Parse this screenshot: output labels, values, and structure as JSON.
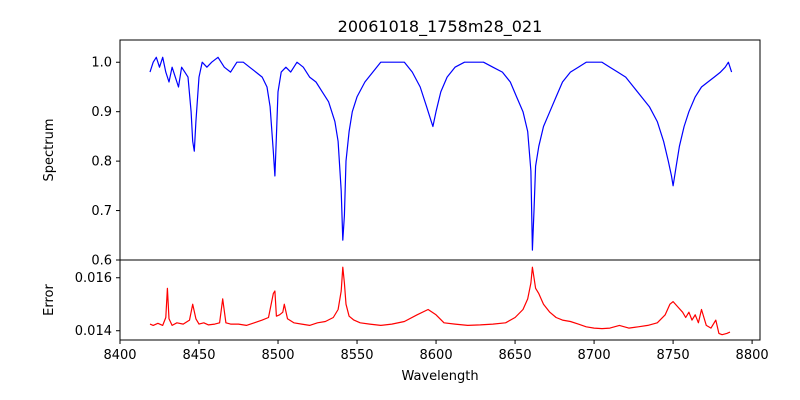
{
  "chart_data": [
    {
      "type": "line",
      "title": "20061018_1758m28_021",
      "xlabel": "",
      "ylabel": "Spectrum",
      "xlim": [
        8400,
        8805
      ],
      "ylim": [
        0.6,
        1.045
      ],
      "xticks": [
        8400,
        8450,
        8500,
        8550,
        8600,
        8650,
        8700,
        8750,
        8800
      ],
      "yticks": [
        0.6,
        0.7,
        0.8,
        0.9,
        1.0
      ],
      "ytick_labels": [
        "0.6",
        "0.7",
        "0.8",
        "0.9",
        "1.0"
      ],
      "grid": false,
      "series": [
        {
          "color": "#0000ff",
          "x": [
            8419,
            8421,
            8423,
            8425,
            8427,
            8429,
            8431,
            8433,
            8435,
            8437,
            8439,
            8441,
            8443,
            8445,
            8446,
            8447,
            8448,
            8450,
            8452,
            8455,
            8458,
            8462,
            8466,
            8470,
            8474,
            8478,
            8482,
            8486,
            8490,
            8493,
            8495,
            8497,
            8498,
            8499,
            8500,
            8502,
            8505,
            8508,
            8512,
            8516,
            8520,
            8524,
            8528,
            8532,
            8536,
            8538,
            8540,
            8541,
            8542,
            8543,
            8545,
            8547,
            8550,
            8555,
            8560,
            8565,
            8570,
            8575,
            8580,
            8585,
            8590,
            8594,
            8597,
            8598,
            8600,
            8603,
            8607,
            8612,
            8618,
            8624,
            8630,
            8636,
            8642,
            8647,
            8651,
            8655,
            8658,
            8660,
            8661,
            8662,
            8663,
            8665,
            8668,
            8672,
            8676,
            8680,
            8685,
            8690,
            8695,
            8700,
            8705,
            8710,
            8715,
            8720,
            8725,
            8730,
            8735,
            8740,
            8744,
            8747,
            8749,
            8750,
            8752,
            8754,
            8757,
            8760,
            8764,
            8768,
            8772,
            8776,
            8780,
            8783,
            8785,
            8787
          ],
          "y": [
            0.98,
            1.0,
            1.01,
            0.99,
            1.01,
            0.98,
            0.96,
            0.99,
            0.97,
            0.95,
            0.99,
            0.98,
            0.97,
            0.9,
            0.84,
            0.82,
            0.88,
            0.97,
            1.0,
            0.99,
            1.0,
            1.01,
            0.99,
            0.98,
            1.0,
            1.0,
            0.99,
            0.98,
            0.97,
            0.95,
            0.91,
            0.82,
            0.77,
            0.85,
            0.94,
            0.98,
            0.99,
            0.98,
            1.0,
            0.99,
            0.97,
            0.96,
            0.94,
            0.92,
            0.88,
            0.84,
            0.74,
            0.64,
            0.69,
            0.8,
            0.86,
            0.9,
            0.93,
            0.96,
            0.98,
            1.0,
            1.0,
            1.0,
            1.0,
            0.98,
            0.95,
            0.91,
            0.88,
            0.87,
            0.9,
            0.94,
            0.97,
            0.99,
            1.0,
            1.0,
            1.0,
            0.99,
            0.98,
            0.96,
            0.93,
            0.9,
            0.86,
            0.78,
            0.62,
            0.7,
            0.79,
            0.83,
            0.87,
            0.9,
            0.93,
            0.96,
            0.98,
            0.99,
            1.0,
            1.0,
            1.0,
            0.99,
            0.98,
            0.97,
            0.95,
            0.93,
            0.91,
            0.88,
            0.84,
            0.8,
            0.77,
            0.75,
            0.79,
            0.83,
            0.87,
            0.9,
            0.93,
            0.95,
            0.96,
            0.97,
            0.98,
            0.99,
            1.0,
            0.98
          ]
        }
      ]
    },
    {
      "type": "line",
      "title": "",
      "xlabel": "Wavelength",
      "ylabel": "Error",
      "xlim": [
        8400,
        8805
      ],
      "ylim": [
        0.01365,
        0.01667
      ],
      "xticks": [
        8400,
        8450,
        8500,
        8550,
        8600,
        8650,
        8700,
        8750,
        8800
      ],
      "yticks": [
        0.014,
        0.016
      ],
      "ytick_labels": [
        "0.014",
        "0.016"
      ],
      "grid": false,
      "series": [
        {
          "color": "#ff0000",
          "x": [
            8419,
            8421,
            8424,
            8427,
            8429,
            8430,
            8431,
            8433,
            8436,
            8440,
            8444,
            8446,
            8448,
            8450,
            8453,
            8456,
            8460,
            8463,
            8465,
            8467,
            8470,
            8475,
            8480,
            8485,
            8490,
            8494,
            8497,
            8498,
            8499,
            8501,
            8503,
            8504,
            8506,
            8510,
            8515,
            8520,
            8525,
            8530,
            8535,
            8538,
            8540,
            8541,
            8542,
            8543,
            8545,
            8548,
            8552,
            8558,
            8565,
            8572,
            8580,
            8588,
            8595,
            8600,
            8605,
            8612,
            8620,
            8628,
            8636,
            8644,
            8650,
            8655,
            8658,
            8660,
            8661,
            8662,
            8663,
            8665,
            8668,
            8672,
            8676,
            8680,
            8685,
            8690,
            8695,
            8700,
            8705,
            8710,
            8716,
            8722,
            8728,
            8734,
            8740,
            8745,
            8748,
            8750,
            8753,
            8756,
            8758,
            8760,
            8762,
            8764,
            8766,
            8768,
            8771,
            8774,
            8777,
            8779,
            8781,
            8784,
            8786
          ],
          "y": [
            0.01425,
            0.0142,
            0.01428,
            0.0142,
            0.0145,
            0.0156,
            0.01445,
            0.0142,
            0.0143,
            0.01425,
            0.0144,
            0.015,
            0.01445,
            0.01425,
            0.0143,
            0.01422,
            0.01425,
            0.0143,
            0.0152,
            0.0143,
            0.01425,
            0.01425,
            0.0142,
            0.0143,
            0.0144,
            0.0145,
            0.0154,
            0.0155,
            0.01455,
            0.0146,
            0.0147,
            0.015,
            0.01445,
            0.0143,
            0.01425,
            0.0142,
            0.0143,
            0.01435,
            0.0145,
            0.0148,
            0.0155,
            0.0164,
            0.0158,
            0.015,
            0.01455,
            0.0144,
            0.0143,
            0.01425,
            0.0142,
            0.01425,
            0.01435,
            0.0146,
            0.0148,
            0.0146,
            0.0143,
            0.01425,
            0.0142,
            0.01422,
            0.01425,
            0.0143,
            0.0145,
            0.0148,
            0.0152,
            0.0158,
            0.0164,
            0.016,
            0.0156,
            0.0154,
            0.015,
            0.0147,
            0.0145,
            0.0144,
            0.01435,
            0.01425,
            0.01415,
            0.0141,
            0.01408,
            0.0141,
            0.0142,
            0.0141,
            0.01415,
            0.0142,
            0.0143,
            0.0146,
            0.015,
            0.0151,
            0.0149,
            0.0147,
            0.0145,
            0.0147,
            0.0144,
            0.0146,
            0.0143,
            0.0148,
            0.0142,
            0.0141,
            0.0144,
            0.0139,
            0.01385,
            0.0139,
            0.01395
          ]
        }
      ]
    }
  ]
}
